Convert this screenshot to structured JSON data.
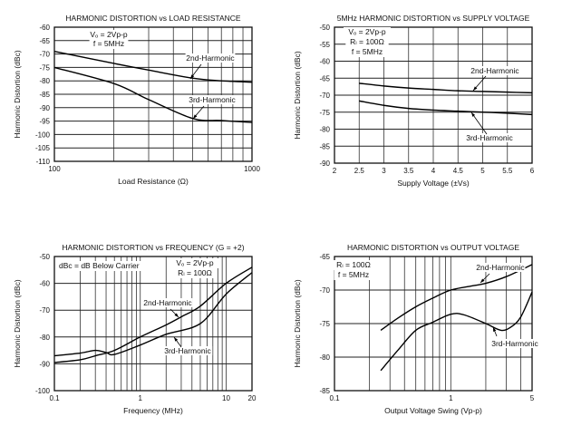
{
  "chart_data": [
    {
      "type": "line",
      "title": "HARMONIC DISTORTION vs LOAD RESISTANCE",
      "xlabel": "Load Resistance (Ω)",
      "ylabel": "Harmonic Distortion (dBc)",
      "xscale": "log",
      "xlim": [
        100,
        1000
      ],
      "ylim": [
        -110,
        -60
      ],
      "xticks": [
        100,
        1000
      ],
      "xtick_labels": [
        "100",
        "1000"
      ],
      "yticks": [
        -60,
        -65,
        -70,
        -75,
        -80,
        -85,
        -90,
        -95,
        -100,
        -105,
        -110
      ],
      "ytick_labels": [
        "-60",
        "-65",
        "-70",
        "-75",
        "-80",
        "-85",
        "-90",
        "-95",
        "-100",
        "-105",
        "-110"
      ],
      "xgrid": [
        200,
        300,
        400,
        500,
        600,
        700,
        800,
        900
      ],
      "grid": true,
      "notes": [
        "Vₒ = 2Vp-p",
        "f = 5MHz"
      ],
      "series": [
        {
          "name": "2nd-Harmonic",
          "x": [
            100,
            200,
            300,
            500,
            700,
            1000
          ],
          "y": [
            -69,
            -73.5,
            -76,
            -79,
            -80,
            -80.5
          ]
        },
        {
          "name": "3rd-Harmonic",
          "x": [
            100,
            200,
            300,
            500,
            700,
            1000
          ],
          "y": [
            -75,
            -81,
            -87,
            -94,
            -94.8,
            -95.5
          ]
        }
      ]
    },
    {
      "type": "line",
      "title": "5MHz HARMONIC DISTORTION vs SUPPLY VOLTAGE",
      "xlabel": "Supply Voltage (±Vs)",
      "ylabel": "Harmonic Distortion (dBc)",
      "xscale": "linear",
      "xlim": [
        2,
        6
      ],
      "ylim": [
        -90,
        -50
      ],
      "xticks": [
        2,
        2.5,
        3,
        3.5,
        4,
        4.5,
        5,
        5.5,
        6
      ],
      "xtick_labels": [
        "2",
        "2.5",
        "3",
        "3.5",
        "4",
        "4.5",
        "5",
        "5.5",
        "6"
      ],
      "yticks": [
        -50,
        -55,
        -60,
        -65,
        -70,
        -75,
        -80,
        -85,
        -90
      ],
      "ytick_labels": [
        "-50",
        "-55",
        "-60",
        "-65",
        "-70",
        "-75",
        "-80",
        "-85",
        "-90"
      ],
      "xgrid": [
        2.5,
        3,
        3.5,
        4,
        4.5,
        5,
        5.5
      ],
      "grid": true,
      "notes": [
        "Vₒ = 2Vp-p",
        "Rₗ = 100Ω",
        "f = 5MHz"
      ],
      "series": [
        {
          "name": "2nd-Harmonic",
          "x": [
            2.5,
            3,
            3.5,
            4,
            4.5,
            5,
            5.5,
            6
          ],
          "y": [
            -66.5,
            -67.3,
            -67.9,
            -68.3,
            -68.7,
            -68.9,
            -69.1,
            -69.3
          ]
        },
        {
          "name": "3rd-Harmonic",
          "x": [
            2.5,
            3,
            3.5,
            4,
            4.5,
            5,
            5.5,
            6
          ],
          "y": [
            -71.7,
            -73,
            -73.9,
            -74.4,
            -74.7,
            -75,
            -75.3,
            -75.7
          ]
        }
      ]
    },
    {
      "type": "line",
      "title": "HARMONIC DISTORTION vs FREQUENCY (G = +2)",
      "xlabel": "Frequency (MHz)",
      "ylabel": "Harmonic Distortion (dBc)",
      "xscale": "log",
      "xlim": [
        0.1,
        20
      ],
      "ylim": [
        -100,
        -50
      ],
      "xticks": [
        0.1,
        1,
        10,
        20
      ],
      "xtick_labels": [
        "0.1",
        "1",
        "10",
        "20"
      ],
      "yticks": [
        -50,
        -60,
        -70,
        -80,
        -90,
        -100
      ],
      "ytick_labels": [
        "-50",
        "-60",
        "-70",
        "-80",
        "-90",
        "-100"
      ],
      "xgrid": [
        0.2,
        0.3,
        0.4,
        0.5,
        0.6,
        0.7,
        0.8,
        0.9,
        1,
        2,
        3,
        4,
        5,
        6,
        7,
        8,
        9,
        10
      ],
      "grid": true,
      "notes": [
        "Vₒ = 2Vp-p",
        "Rₗ = 100Ω"
      ],
      "note_left": "dBc = dB Below Carrier",
      "series": [
        {
          "name": "2nd-Harmonic",
          "x": [
            0.1,
            0.2,
            0.3,
            0.5,
            1,
            2,
            3,
            5,
            10,
            20
          ],
          "y": [
            -89.5,
            -88.5,
            -87,
            -85,
            -80,
            -75.5,
            -72.5,
            -68.5,
            -60,
            -54
          ]
        },
        {
          "name": "3rd-Harmonic",
          "x": [
            0.1,
            0.2,
            0.3,
            0.4,
            0.5,
            1,
            2,
            5,
            10,
            20
          ],
          "y": [
            -87,
            -86,
            -85,
            -85.8,
            -86.5,
            -83,
            -79,
            -75,
            -64,
            -56
          ]
        }
      ]
    },
    {
      "type": "line",
      "title": "HARMONIC DISTORTION vs OUTPUT VOLTAGE",
      "xlabel": "Output Voltage Swing (Vp-p)",
      "ylabel": "Harmonic Distortion (dBc)",
      "xscale": "log",
      "xlim": [
        0.1,
        5
      ],
      "ylim": [
        -85,
        -65
      ],
      "xticks": [
        0.1,
        1,
        5
      ],
      "xtick_labels": [
        "0.1",
        "1",
        "5"
      ],
      "yticks": [
        -65,
        -70,
        -75,
        -80,
        -85
      ],
      "ytick_labels": [
        "-65",
        "-70",
        "-75",
        "-80",
        "-85"
      ],
      "xgrid": [
        0.2,
        0.3,
        0.4,
        0.5,
        0.6,
        0.7,
        0.8,
        0.9,
        1,
        2,
        3,
        4
      ],
      "grid": true,
      "notes": [
        "Rₗ = 100Ω",
        "f = 5MHz"
      ],
      "series": [
        {
          "name": "2nd-Harmonic",
          "x": [
            0.25,
            0.35,
            0.5,
            0.7,
            1,
            1.5,
            2,
            3,
            5
          ],
          "y": [
            -76,
            -74.2,
            -72.5,
            -71.2,
            -70,
            -69.4,
            -69,
            -68,
            -66.2
          ]
        },
        {
          "name": "3rd-Harmonic",
          "x": [
            0.25,
            0.35,
            0.5,
            0.7,
            1,
            1.3,
            2,
            2.7,
            3.3,
            4,
            5
          ],
          "y": [
            -82,
            -79,
            -76,
            -74.8,
            -73.6,
            -73.7,
            -75,
            -76,
            -75.5,
            -74,
            -70.3
          ]
        }
      ]
    }
  ]
}
